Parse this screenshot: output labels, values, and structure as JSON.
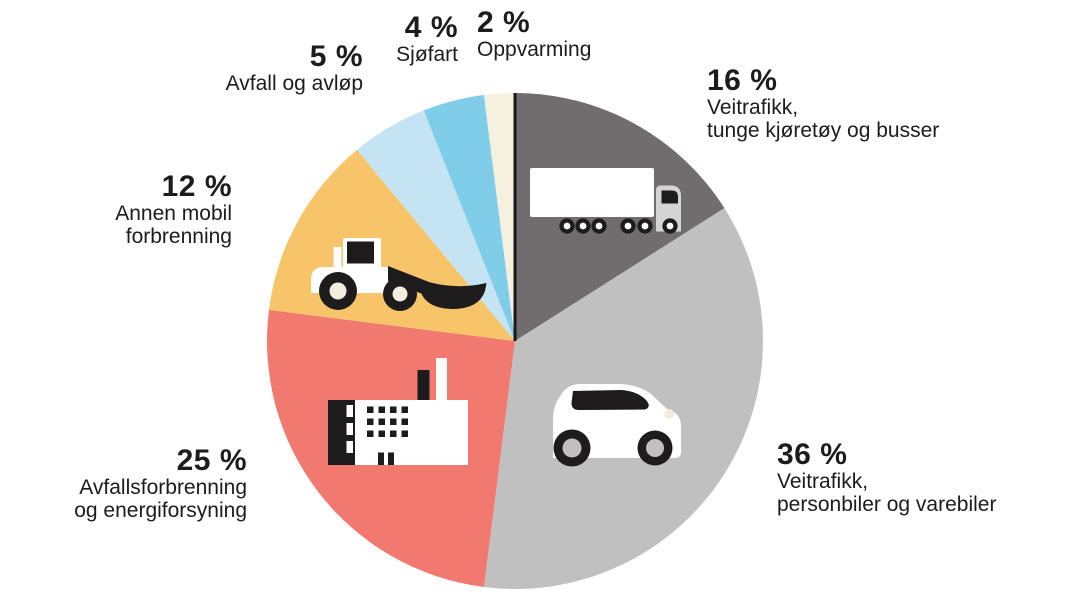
{
  "chart_data": {
    "type": "pie",
    "title": "",
    "unit": "%",
    "start_angle_deg": 0,
    "direction": "clockwise",
    "background": "#FFFFFF",
    "divider_line_color": "#1A1818",
    "text_color": "#1D1B1B",
    "slices": [
      {
        "id": "veitrafikk-tunge",
        "value": 16,
        "pct_label": "16 %",
        "label_lines": [
          "Veitrafikk,",
          "tunge kjøretøy og busser"
        ],
        "color": "#716D6E",
        "icon": "truck-icon"
      },
      {
        "id": "veitrafikk-personbiler",
        "value": 36,
        "pct_label": "36 %",
        "label_lines": [
          "Veitrafikk,",
          "personbiler og varebiler"
        ],
        "color": "#C1C0C0",
        "icon": "car-icon"
      },
      {
        "id": "avfallsforbrenning",
        "value": 25,
        "pct_label": "25 %",
        "label_lines": [
          "Avfallsforbrenning",
          "og energiforsyning"
        ],
        "color": "#F1796F",
        "icon": "factory-icon"
      },
      {
        "id": "annen-mobil",
        "value": 12,
        "pct_label": "12 %",
        "label_lines": [
          "Annen mobil",
          "forbrenning"
        ],
        "color": "#F7C469",
        "icon": "wheel-loader-icon"
      },
      {
        "id": "avfall-avlop",
        "value": 5,
        "pct_label": "5 %",
        "label_lines": [
          "Avfall og avløp"
        ],
        "color": "#C4E3F3",
        "icon": null
      },
      {
        "id": "sjofart",
        "value": 4,
        "pct_label": "4 %",
        "label_lines": [
          "Sjøfart"
        ],
        "color": "#7FCDE9",
        "icon": null
      },
      {
        "id": "oppvarming",
        "value": 2,
        "pct_label": "2 %",
        "label_lines": [
          "Oppvarming"
        ],
        "color": "#F6F0DE",
        "icon": null
      }
    ],
    "icon_colors": {
      "icon_black": "#1D1B1B",
      "icon_white": "#FFFFFF",
      "truck_cab_gray": "#D5D4D4",
      "wheel_center_cream": "#F2EDDE"
    }
  }
}
